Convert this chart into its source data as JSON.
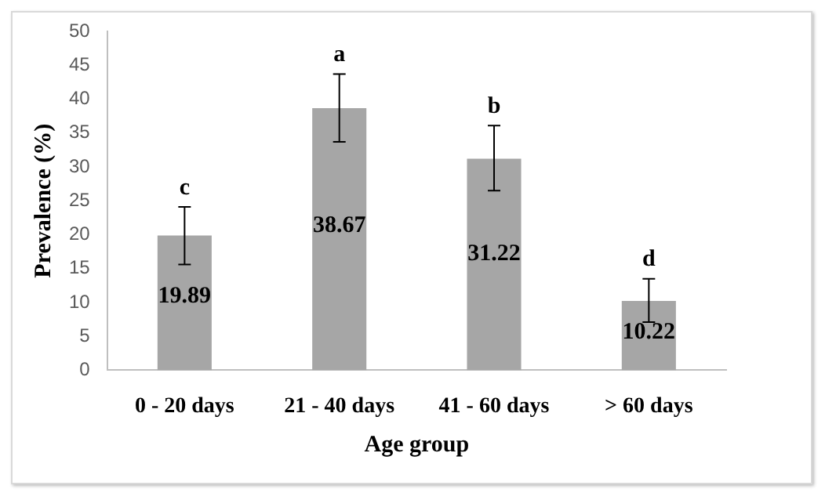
{
  "chart_data": {
    "type": "bar",
    "xlabel": "Age group",
    "ylabel": "Prevalence (%)",
    "categories": [
      "0 - 20 days",
      "21 - 40 days",
      "41 - 60 days",
      "> 60 days"
    ],
    "values": [
      19.89,
      38.67,
      31.22,
      10.22
    ],
    "color": "#a6a6a6",
    "errors": [
      [
        15.6,
        24.1
      ],
      [
        33.7,
        43.7
      ],
      [
        26.5,
        36.1
      ],
      [
        7.1,
        13.5
      ]
    ],
    "ylim": [
      0,
      50
    ],
    "yticks": [
      0,
      5,
      10,
      15,
      20,
      25,
      30,
      35,
      40,
      45,
      50
    ],
    "data_labels": true,
    "grid": false,
    "legend": false,
    "annotations": [
      "c",
      "a",
      "b",
      "d"
    ]
  }
}
